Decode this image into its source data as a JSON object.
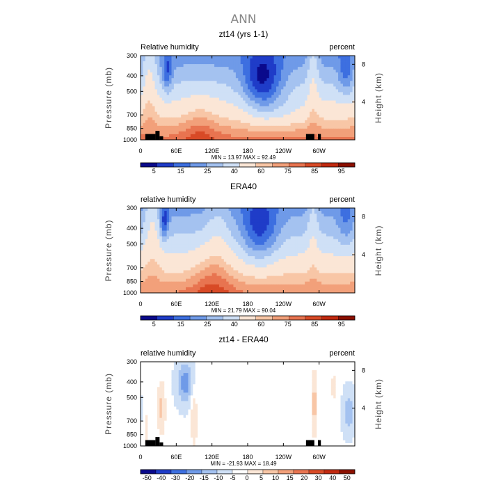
{
  "page_title": "ANN",
  "colors": {
    "rh": [
      "#0a0a8c",
      "#1f3cc8",
      "#3d6fe0",
      "#6f9ae8",
      "#a4c2f0",
      "#cfe0f6",
      "#fbe6d6",
      "#f8c6a6",
      "#f2a07a",
      "#e87450",
      "#d84a26",
      "#c22a10",
      "#8c1000"
    ],
    "diff": [
      "#0a0a8c",
      "#1f3cc8",
      "#3d6fe0",
      "#6f9ae8",
      "#a4c2f0",
      "#cfe0f6",
      "#ffffff",
      "#fbe6d6",
      "#f8c6a6",
      "#f2a07a",
      "#e87450",
      "#d84a26",
      "#c22a10",
      "#8c1000"
    ],
    "topo": "#000000"
  },
  "chart_data": [
    {
      "type": "heatmap",
      "title": "zt14 (yrs 1-1)",
      "left_label": "Relative humidity",
      "right_label": "percent",
      "ylabel": "Pressure (mb)",
      "ylabel_right": "Height (km)",
      "x_ticks": [
        "0",
        "60E",
        "120E",
        "180",
        "120W",
        "60W"
      ],
      "y_ticks": [
        "300",
        "400",
        "500",
        "700",
        "850",
        "1000"
      ],
      "y_right_ticks": [
        "8",
        "4"
      ],
      "min_max": "MIN =   13.97   MAX =   92.49",
      "colorbar_labels": [
        "5",
        "15",
        "25",
        "40",
        "60",
        "75",
        "85",
        "95"
      ],
      "min": 13.97,
      "max": 92.49,
      "palette": "rh",
      "dataset": "model"
    },
    {
      "type": "heatmap",
      "title": "ERA40",
      "left_label": "relative humidity",
      "right_label": "percent",
      "ylabel": "Pressure (mb)",
      "ylabel_right": "Height (km)",
      "x_ticks": [
        "0",
        "60E",
        "120E",
        "180",
        "120W",
        "60W"
      ],
      "y_ticks": [
        "300",
        "400",
        "500",
        "700",
        "850",
        "1000"
      ],
      "y_right_ticks": [
        "8",
        "4"
      ],
      "min_max": "MIN =   21.79   MAX =   90.04",
      "colorbar_labels": [
        "5",
        "15",
        "25",
        "40",
        "60",
        "75",
        "85",
        "95"
      ],
      "min": 21.79,
      "max": 90.04,
      "palette": "rh",
      "dataset": "obs"
    },
    {
      "type": "heatmap",
      "title": "zt14 - ERA40",
      "left_label": "relative humidity",
      "right_label": "percent",
      "ylabel": "Pressure (mb)",
      "ylabel_right": "Height (km)",
      "x_ticks": [
        "0",
        "60E",
        "120E",
        "180",
        "120W",
        "60W"
      ],
      "y_ticks": [
        "300",
        "400",
        "500",
        "700",
        "850",
        "1000"
      ],
      "y_right_ticks": [
        "8",
        "4"
      ],
      "min_max": "MIN = -21.93   MAX =   18.49",
      "colorbar_labels": [
        "-50",
        "-40",
        "-30",
        "-20",
        "-15",
        "-10",
        "-5",
        "0",
        "5",
        "10",
        "15",
        "20",
        "30",
        "40",
        "50"
      ],
      "min": -21.93,
      "max": 18.49,
      "palette": "diff",
      "dataset": "diff"
    }
  ]
}
